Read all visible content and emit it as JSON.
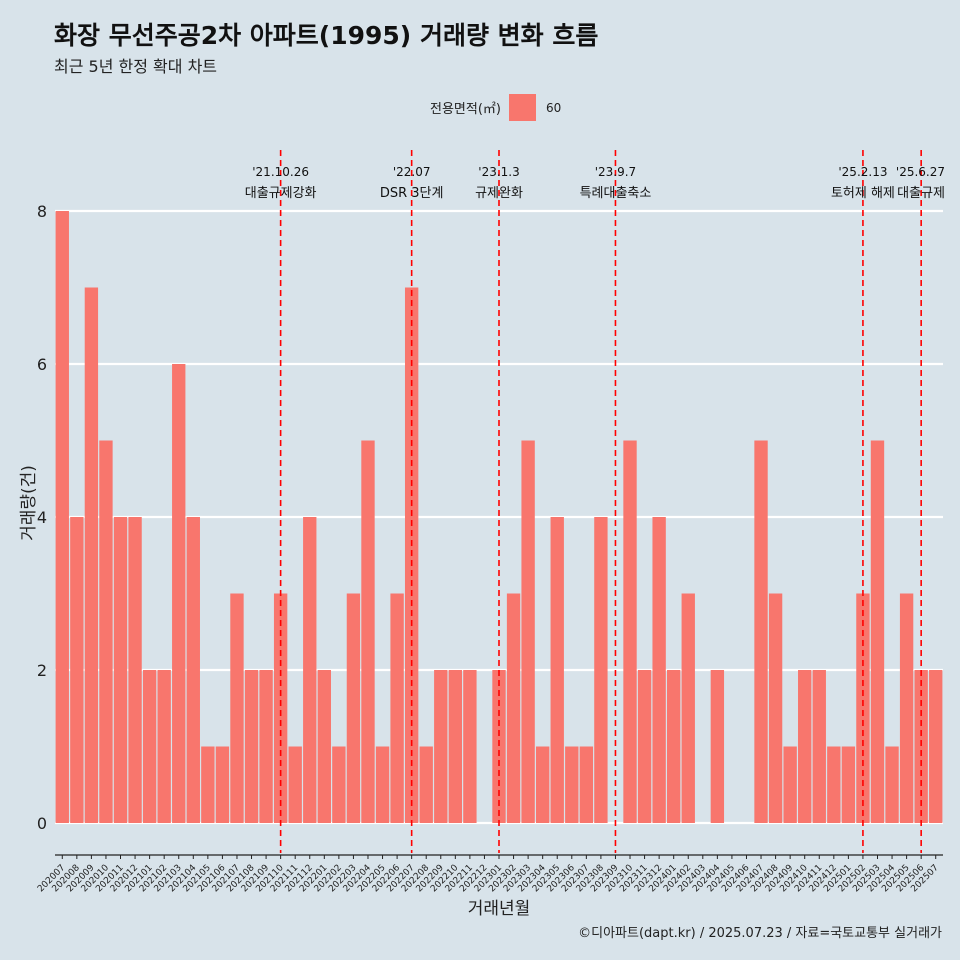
{
  "title": "화장 무선주공2차 아파트(1995) 거래량 변화 흐름",
  "subtitle": "최근 5년 한정 확대 차트",
  "caption": "©디아파트(dapt.kr) / 2025.07.23 / 자료=국토교통부 실거래가",
  "legend": {
    "title": "전용면적(㎡)",
    "items": [
      {
        "label": "60",
        "color": "#f8766d"
      }
    ]
  },
  "chart_data": {
    "type": "bar",
    "xlabel": "거래년월",
    "ylabel": "거래량(건)",
    "ylim": [
      0,
      8
    ],
    "yticks": [
      0,
      2,
      4,
      6,
      8
    ],
    "grid": true,
    "legend_position": "top",
    "categories": [
      "202007",
      "202008",
      "202009",
      "202010",
      "202011",
      "202012",
      "202101",
      "202102",
      "202103",
      "202104",
      "202105",
      "202106",
      "202107",
      "202108",
      "202109",
      "202110",
      "202111",
      "202112",
      "202201",
      "202202",
      "202203",
      "202204",
      "202205",
      "202206",
      "202207",
      "202208",
      "202209",
      "202210",
      "202211",
      "202212",
      "202301",
      "202302",
      "202303",
      "202304",
      "202305",
      "202306",
      "202307",
      "202308",
      "202309",
      "202310",
      "202311",
      "202312",
      "202401",
      "202402",
      "202403",
      "202404",
      "202405",
      "202406",
      "202407",
      "202408",
      "202409",
      "202410",
      "202411",
      "202412",
      "202501",
      "202502",
      "202503",
      "202504",
      "202505",
      "202506",
      "202507"
    ],
    "series": [
      {
        "name": "60",
        "color": "#f8766d",
        "values": [
          8,
          4,
          7,
          5,
          4,
          4,
          2,
          2,
          6,
          4,
          1,
          1,
          3,
          2,
          2,
          3,
          1,
          4,
          2,
          1,
          3,
          5,
          1,
          3,
          7,
          1,
          2,
          2,
          2,
          0,
          2,
          3,
          5,
          1,
          4,
          1,
          1,
          4,
          0,
          5,
          2,
          4,
          2,
          3,
          0,
          2,
          0,
          0,
          5,
          3,
          1,
          2,
          2,
          1,
          1,
          3,
          5,
          1,
          3,
          2,
          2
        ]
      }
    ],
    "annotations": [
      {
        "category": "202110",
        "date": "'21.10.26",
        "text": "대출규제강화"
      },
      {
        "category": "202207",
        "date": "'22.07",
        "text": "DSR 3단계"
      },
      {
        "category": "202301",
        "date": "'23.1.3",
        "text": "규제완화"
      },
      {
        "category": "202309",
        "date": "'23.9.7",
        "text": "특례대출축소"
      },
      {
        "category": "202502",
        "date": "'25.2.13",
        "text": "토허제 해제"
      },
      {
        "category": "202506",
        "date": "'25.6.27",
        "text": "대출규제"
      }
    ]
  }
}
